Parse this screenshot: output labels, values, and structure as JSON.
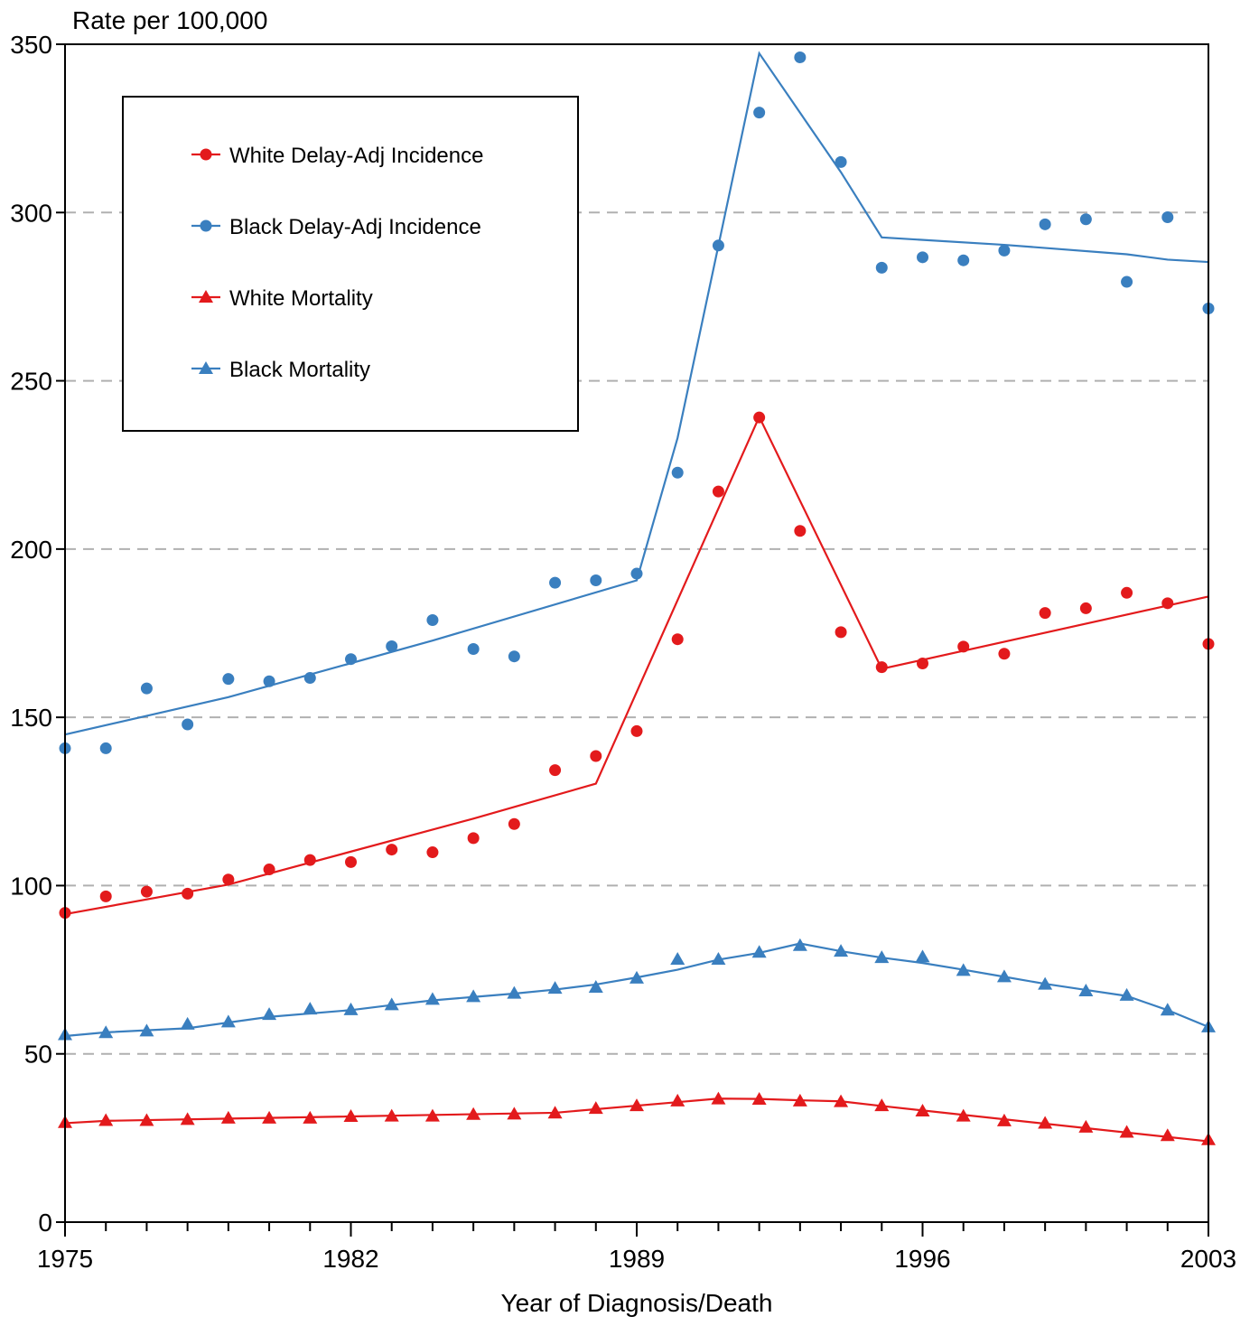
{
  "chart_data": {
    "type": "line",
    "ylabel": "Rate per 100,000",
    "xlabel": "Year of Diagnosis/Death",
    "xlim": [
      1975,
      2003
    ],
    "ylim": [
      0,
      350
    ],
    "x_ticks": [
      1975,
      1982,
      1989,
      1996,
      2003
    ],
    "y_ticks": [
      0,
      50,
      100,
      150,
      200,
      250,
      300,
      350
    ],
    "grid": "horizontal dashed",
    "legend_position": "top-left",
    "x": [
      1975,
      1976,
      1977,
      1978,
      1979,
      1980,
      1981,
      1982,
      1983,
      1984,
      1985,
      1986,
      1987,
      1988,
      1989,
      1990,
      1991,
      1992,
      1993,
      1994,
      1995,
      1996,
      1997,
      1998,
      1999,
      2000,
      2001,
      2002,
      2003
    ],
    "series": [
      {
        "name": "White Delay-Adj Incidence",
        "color": "#e31a1c",
        "marker": "circle",
        "observed": [
          91.9,
          96.8,
          98.2,
          97.6,
          101.8,
          104.8,
          107.6,
          107.0,
          110.7,
          109.9,
          114.1,
          118.3,
          134.3,
          138.5,
          145.9,
          173.2,
          217.1,
          239.1,
          205.4,
          175.3,
          164.9,
          166.0,
          171.0,
          168.9,
          181.0,
          182.4,
          187.0,
          183.9,
          171.8
        ],
        "fitted": {
          "x": [
            1975,
            1979,
            1985,
            1988,
            1992,
            1995,
            2003
          ],
          "y": [
            91.5,
            100.3,
            119.9,
            130.3,
            239.3,
            164.4,
            185.9
          ]
        }
      },
      {
        "name": "Black Delay-Adj Incidence",
        "color": "#3a7fbf",
        "marker": "circle",
        "observed": [
          140.8,
          140.8,
          158.6,
          147.9,
          161.4,
          160.7,
          161.7,
          167.3,
          171.1,
          178.9,
          170.3,
          168.1,
          190.0,
          190.7,
          192.7,
          222.7,
          290.2,
          329.7,
          346.1,
          315.0,
          283.6,
          286.7,
          285.8,
          288.7,
          296.5,
          298.0,
          279.4,
          298.6,
          271.5
        ],
        "fitted": {
          "x": [
            1975,
            1979,
            1984,
            1989,
            1990,
            1992,
            1994,
            1995,
            1998,
            2001,
            2002,
            2003
          ],
          "y": [
            144.9,
            156.0,
            172.8,
            190.7,
            233.0,
            347.3,
            312.0,
            292.6,
            290.4,
            287.6,
            286.0,
            285.3
          ]
        }
      },
      {
        "name": "White Mortality",
        "color": "#e31a1c",
        "marker": "triangle",
        "observed": [
          29.6,
          30.2,
          30.2,
          30.5,
          30.9,
          30.9,
          30.9,
          31.4,
          31.5,
          31.5,
          32.0,
          32.1,
          32.4,
          33.8,
          34.6,
          36.0,
          36.6,
          36.5,
          36.0,
          35.8,
          34.6,
          33.0,
          31.5,
          30.1,
          29.4,
          28.2,
          26.7,
          25.7,
          24.5
        ],
        "fitted": {
          "x": [
            1975,
            1976,
            1987,
            1991,
            1992,
            1993,
            1994,
            1995,
            2003
          ],
          "y": [
            29.4,
            30.1,
            32.5,
            36.7,
            36.6,
            36.2,
            35.9,
            34.5,
            24.0
          ]
        }
      },
      {
        "name": "Black Mortality",
        "color": "#3a7fbf",
        "marker": "triangle",
        "observed": [
          55.7,
          56.3,
          56.8,
          58.8,
          59.5,
          61.7,
          63.3,
          63.1,
          64.6,
          66.2,
          67.0,
          68.0,
          69.5,
          69.8,
          72.5,
          78.1,
          78.1,
          80.2,
          82.2,
          80.5,
          78.6,
          78.8,
          74.8,
          72.9,
          70.7,
          68.7,
          67.4,
          63.0,
          58.0
        ],
        "fitted": {
          "x": [
            1975,
            1976,
            1978,
            1980,
            1982,
            1983,
            1984,
            1985,
            1986,
            1987,
            1988,
            1989,
            1990,
            1991,
            1992,
            1993,
            1994,
            1995,
            1996,
            1997,
            1998,
            1999,
            2000,
            2001,
            2002,
            2003
          ],
          "y": [
            55.3,
            56.4,
            57.6,
            61.0,
            63.0,
            64.5,
            65.9,
            66.9,
            67.9,
            69.1,
            70.6,
            72.7,
            75.0,
            78.0,
            80.0,
            82.8,
            80.5,
            78.6,
            77.0,
            75.0,
            72.9,
            70.8,
            69.0,
            67.2,
            63.0,
            58.0
          ]
        }
      }
    ]
  }
}
